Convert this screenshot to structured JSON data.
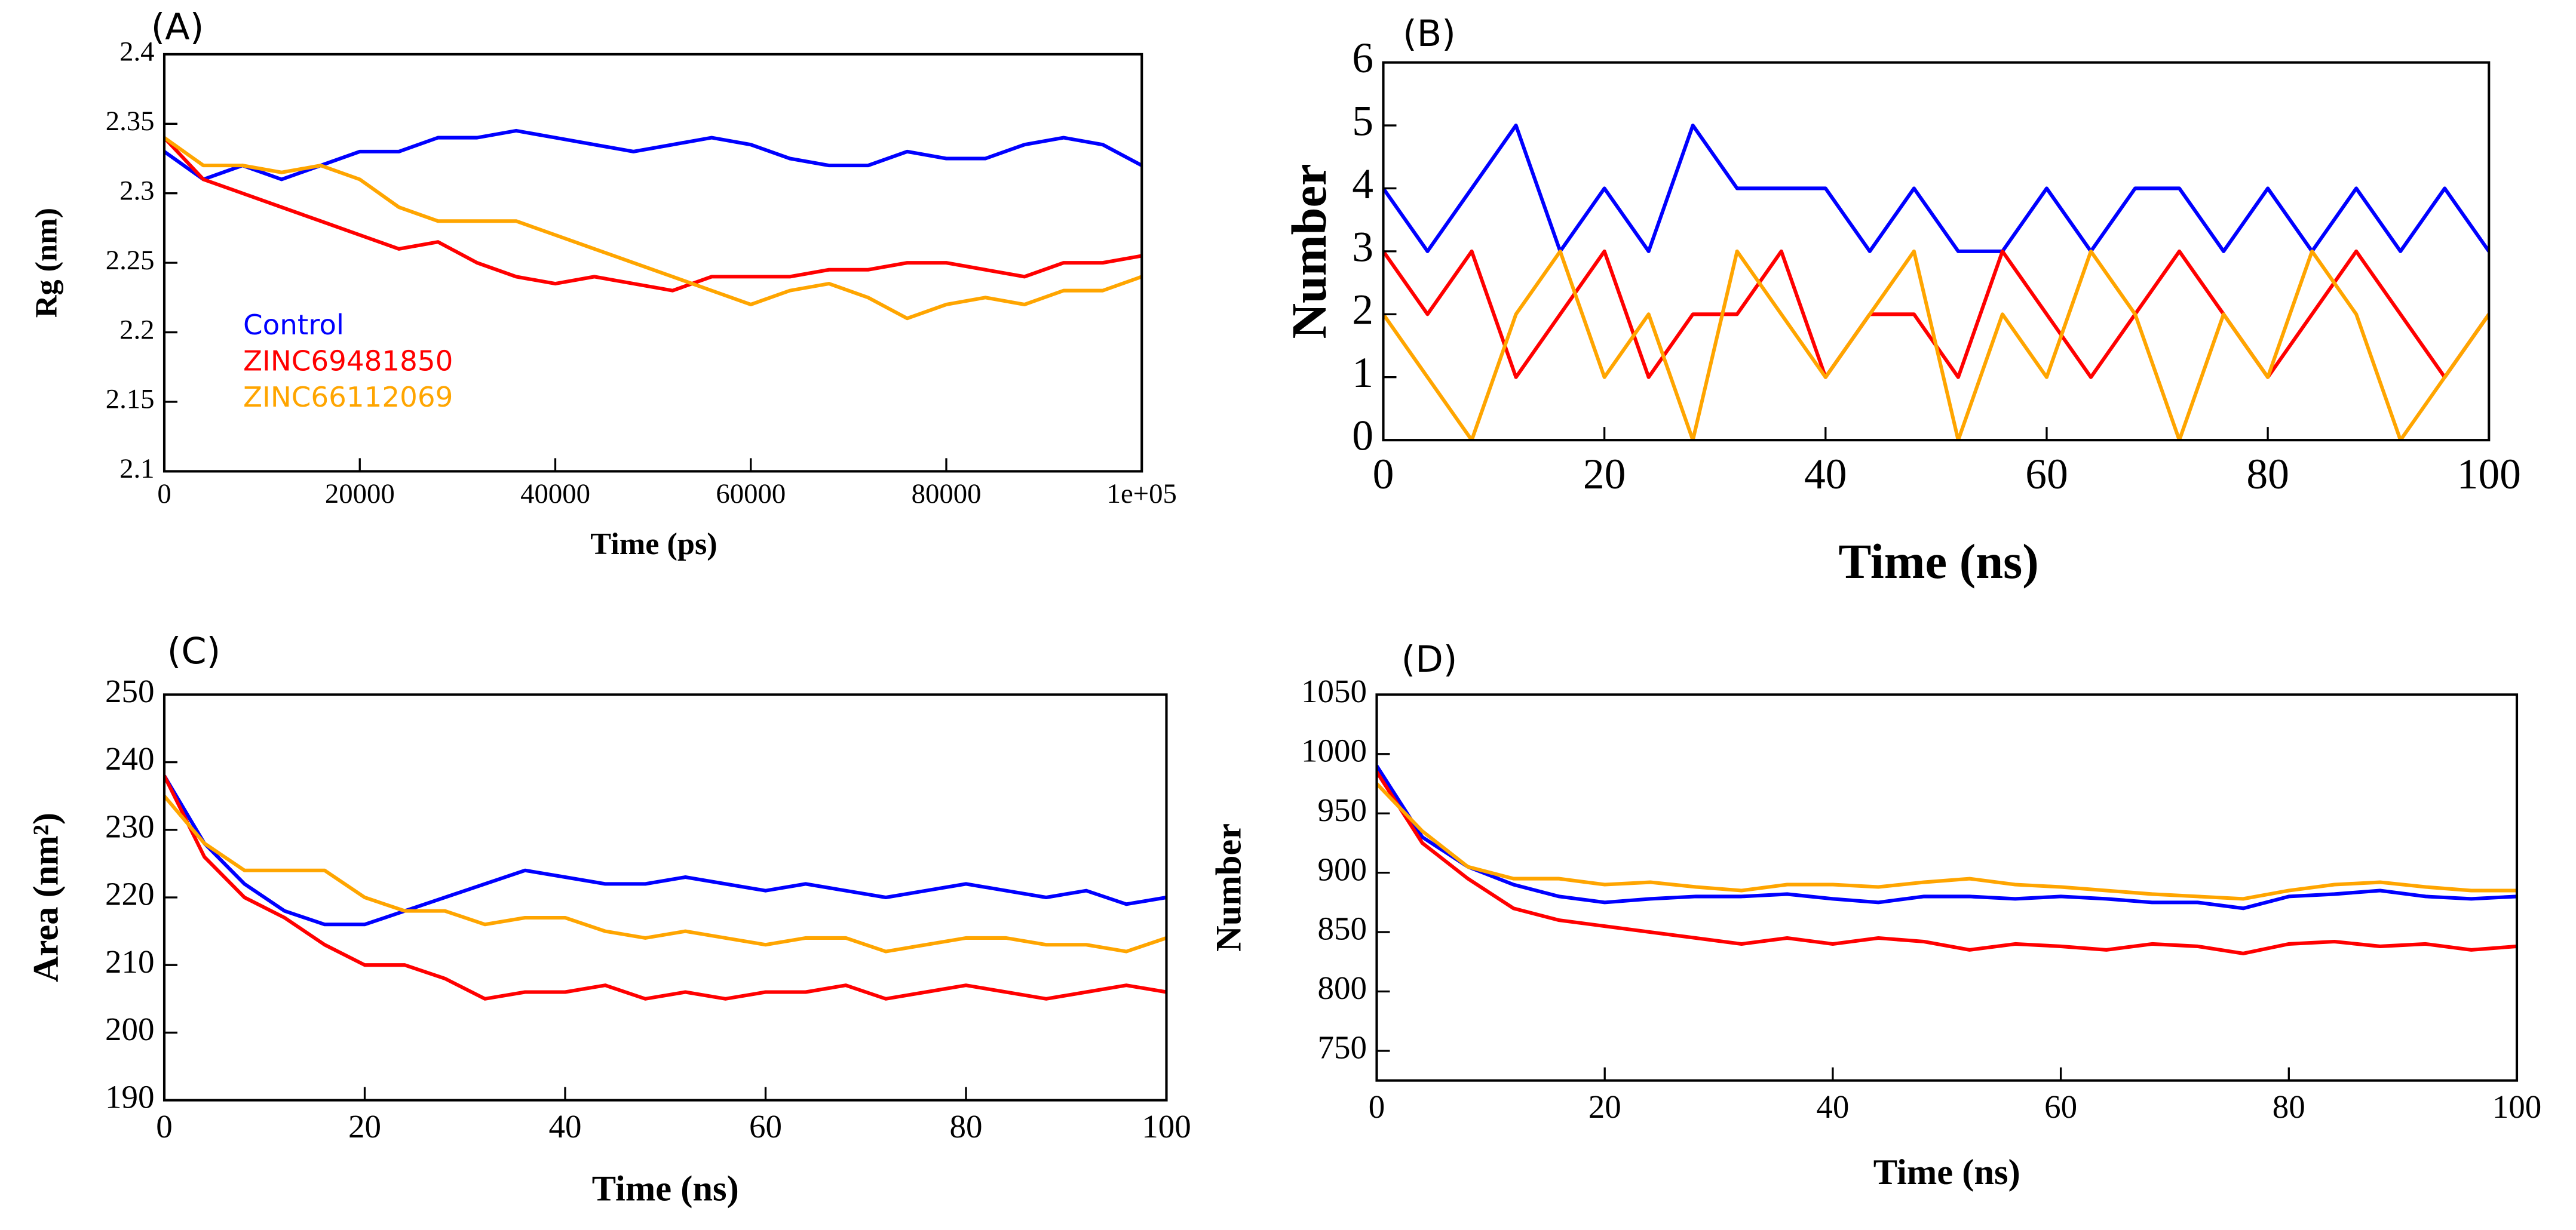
{
  "chart_data": [
    {
      "type": "line",
      "title": "(A)",
      "x_label": "Time (ps)",
      "y_label": "Rg (nm)",
      "x": [
        0,
        4000,
        8000,
        12000,
        16000,
        20000,
        24000,
        28000,
        32000,
        36000,
        40000,
        44000,
        48000,
        52000,
        56000,
        60000,
        64000,
        68000,
        72000,
        76000,
        80000,
        84000,
        88000,
        92000,
        96000,
        100000
      ],
      "xlim": [
        0,
        100000
      ],
      "xticks": [
        0,
        20000,
        40000,
        60000,
        80000,
        {
          "value": 100000,
          "label": "1e+05"
        }
      ],
      "ylim": [
        2.1,
        2.4
      ],
      "yticks": [
        2.1,
        2.15,
        2.2,
        2.25,
        2.3,
        2.35,
        2.4
      ],
      "legend": "inside-left",
      "grid": false,
      "series": [
        {
          "name": "Control",
          "color": "#0000ff",
          "values": [
            2.33,
            2.31,
            2.32,
            2.31,
            2.32,
            2.33,
            2.33,
            2.34,
            2.34,
            2.345,
            2.34,
            2.335,
            2.33,
            2.335,
            2.34,
            2.335,
            2.325,
            2.32,
            2.32,
            2.33,
            2.325,
            2.325,
            2.335,
            2.34,
            2.335,
            2.32
          ]
        },
        {
          "name": "ZINC69481850",
          "color": "#ff0000",
          "values": [
            2.34,
            2.31,
            2.3,
            2.29,
            2.28,
            2.27,
            2.26,
            2.265,
            2.25,
            2.24,
            2.235,
            2.24,
            2.235,
            2.23,
            2.24,
            2.24,
            2.24,
            2.245,
            2.245,
            2.25,
            2.25,
            2.245,
            2.24,
            2.25,
            2.25,
            2.255
          ]
        },
        {
          "name": "ZINC66112069",
          "color": "#ffa500",
          "values": [
            2.34,
            2.32,
            2.32,
            2.315,
            2.32,
            2.31,
            2.29,
            2.28,
            2.28,
            2.28,
            2.27,
            2.26,
            2.25,
            2.24,
            2.23,
            2.22,
            2.23,
            2.235,
            2.225,
            2.21,
            2.22,
            2.225,
            2.22,
            2.23,
            2.23,
            2.24
          ]
        }
      ]
    },
    {
      "type": "line",
      "title": "(B)",
      "x_label": "Time (ns)",
      "y_label": "Number",
      "x": [
        0,
        4,
        8,
        12,
        16,
        20,
        24,
        28,
        32,
        36,
        40,
        44,
        48,
        52,
        56,
        60,
        64,
        68,
        72,
        76,
        80,
        84,
        88,
        92,
        96,
        100
      ],
      "xlim": [
        0,
        100
      ],
      "xticks": [
        0,
        20,
        40,
        60,
        80,
        100
      ],
      "ylim": [
        0,
        6
      ],
      "yticks": [
        0,
        1,
        2,
        3,
        4,
        5,
        6
      ],
      "grid": false,
      "series": [
        {
          "color": "#0000ff",
          "values": [
            4,
            3,
            4,
            5,
            3,
            4,
            3,
            5,
            4,
            4,
            4,
            3,
            4,
            3,
            3,
            4,
            3,
            4,
            4,
            3,
            4,
            3,
            4,
            3,
            4,
            3
          ]
        },
        {
          "color": "#ff0000",
          "values": [
            3,
            2,
            3,
            1,
            2,
            3,
            1,
            2,
            2,
            3,
            1,
            2,
            2,
            1,
            3,
            2,
            1,
            2,
            3,
            2,
            1,
            2,
            3,
            2,
            1,
            2
          ]
        },
        {
          "color": "#ffa500",
          "values": [
            2,
            1,
            0,
            2,
            3,
            1,
            2,
            0,
            3,
            2,
            1,
            2,
            3,
            0,
            2,
            1,
            3,
            2,
            0,
            2,
            1,
            3,
            2,
            0,
            1,
            2
          ]
        }
      ]
    },
    {
      "type": "line",
      "title": "(C)",
      "x_label": "Time (ns)",
      "y_label": "Area (nm²)",
      "x": [
        0,
        4,
        8,
        12,
        16,
        20,
        24,
        28,
        32,
        36,
        40,
        44,
        48,
        52,
        56,
        60,
        64,
        68,
        72,
        76,
        80,
        84,
        88,
        92,
        96,
        100
      ],
      "xlim": [
        0,
        100
      ],
      "xticks": [
        0,
        20,
        40,
        60,
        80,
        100
      ],
      "ylim": [
        190,
        250
      ],
      "yticks": [
        190,
        200,
        210,
        220,
        230,
        240,
        250
      ],
      "grid": false,
      "series": [
        {
          "color": "#0000ff",
          "values": [
            238,
            228,
            222,
            218,
            216,
            216,
            218,
            220,
            222,
            224,
            223,
            222,
            222,
            223,
            222,
            221,
            222,
            221,
            220,
            221,
            222,
            221,
            220,
            221,
            219,
            220
          ]
        },
        {
          "color": "#ff0000",
          "values": [
            238,
            226,
            220,
            217,
            213,
            210,
            210,
            208,
            205,
            206,
            206,
            207,
            205,
            206,
            205,
            206,
            206,
            207,
            205,
            206,
            207,
            206,
            205,
            206,
            207,
            206
          ]
        },
        {
          "color": "#ffa500",
          "values": [
            235,
            228,
            224,
            224,
            224,
            220,
            218,
            218,
            216,
            217,
            217,
            215,
            214,
            215,
            214,
            213,
            214,
            214,
            212,
            213,
            214,
            214,
            213,
            213,
            212,
            214
          ]
        }
      ]
    },
    {
      "type": "line",
      "title": "(D)",
      "x_label": "Time (ns)",
      "y_label": "Number",
      "x": [
        0,
        4,
        8,
        12,
        16,
        20,
        24,
        28,
        32,
        36,
        40,
        44,
        48,
        52,
        56,
        60,
        64,
        68,
        72,
        76,
        80,
        84,
        88,
        92,
        96,
        100
      ],
      "xlim": [
        0,
        100
      ],
      "xticks": [
        0,
        20,
        40,
        60,
        80,
        100
      ],
      "ylim": [
        725,
        1050
      ],
      "yticks": [
        750,
        800,
        850,
        900,
        950,
        1000,
        1050
      ],
      "grid": false,
      "series": [
        {
          "color": "#0000ff",
          "values": [
            990,
            930,
            905,
            890,
            880,
            875,
            878,
            880,
            880,
            882,
            878,
            875,
            880,
            880,
            878,
            880,
            878,
            875,
            875,
            870,
            880,
            882,
            885,
            880,
            878,
            880
          ]
        },
        {
          "color": "#ff0000",
          "values": [
            985,
            925,
            895,
            870,
            860,
            855,
            850,
            845,
            840,
            845,
            840,
            845,
            842,
            835,
            840,
            838,
            835,
            840,
            838,
            832,
            840,
            842,
            838,
            840,
            835,
            838
          ]
        },
        {
          "color": "#ffa500",
          "values": [
            975,
            935,
            905,
            895,
            895,
            890,
            892,
            888,
            885,
            890,
            890,
            888,
            892,
            895,
            890,
            888,
            885,
            882,
            880,
            878,
            885,
            890,
            892,
            888,
            885,
            885
          ]
        }
      ]
    }
  ]
}
